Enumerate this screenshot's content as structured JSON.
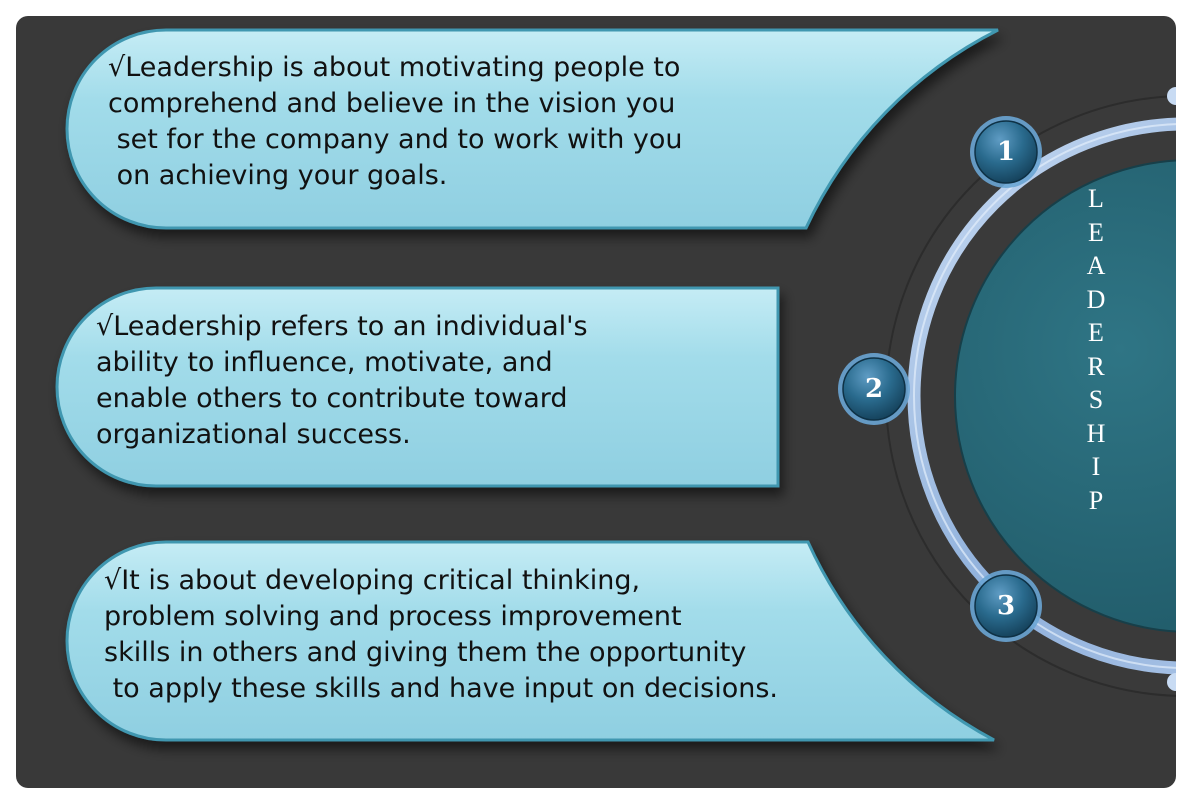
{
  "points": [
    {
      "number": "1",
      "lines": [
        "√Leadership is about motivating people to",
        "comprehend and believe in the vision you",
        " set for the company and to work with you",
        " on achieving your goals."
      ]
    },
    {
      "number": "2",
      "lines": [
        "√Leadership refers to an individual's",
        "ability to influence, motivate, and",
        "enable others to contribute toward",
        "organizational success."
      ]
    },
    {
      "number": "3",
      "lines": [
        "√It is about developing critical thinking,",
        "problem solving and process improvement",
        "skills in others and giving them the opportunity",
        " to apply these skills and have input on decisions."
      ]
    }
  ],
  "title_letters": [
    "L",
    "E",
    "A",
    "D",
    "E",
    "R",
    "S",
    "H",
    "I",
    "P"
  ],
  "colors": {
    "background": "#393939",
    "banner_fill": "#9fd9e8",
    "banner_edge": "#3f97b0",
    "ring": "#9bb9e0",
    "circle_fill": "#2d6e80",
    "badge_fill": "#1f5d7c",
    "text": "#111111"
  }
}
